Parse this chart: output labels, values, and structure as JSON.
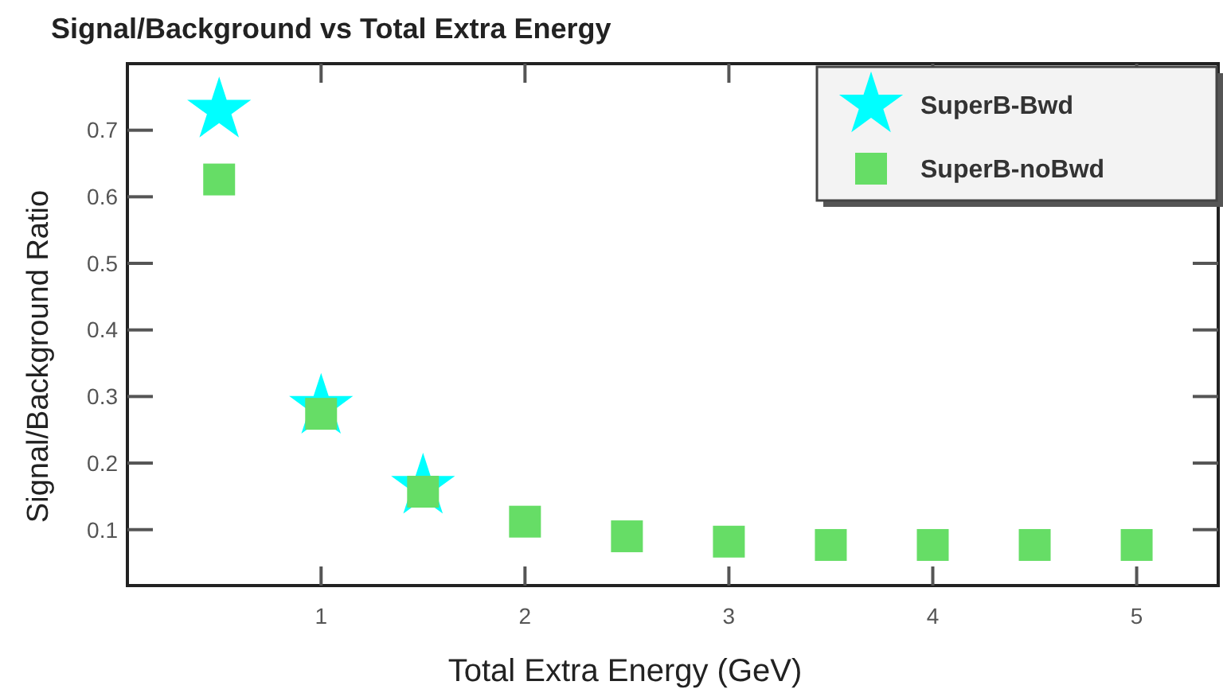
{
  "chart_data": {
    "type": "scatter",
    "title": "Signal/Background vs Total Extra Energy",
    "xlabel": "Total Extra Energy (GeV)",
    "ylabel": "Signal/Background  Ratio",
    "x": [
      0.5,
      1,
      1.5,
      2,
      2.5,
      3,
      3.5,
      4,
      4.5,
      5
    ],
    "series": [
      {
        "name": "SuperB-Bwd",
        "color": "#00ffff",
        "marker": "star",
        "values": [
          0.73,
          0.285,
          0.165,
          null,
          null,
          null,
          null,
          null,
          null,
          null
        ]
      },
      {
        "name": "SuperB-noBwd",
        "color": "#66dd66",
        "marker": "square",
        "values": [
          0.626,
          0.274,
          0.157,
          0.112,
          0.09,
          0.082,
          0.077,
          0.077,
          0.077,
          0.077
        ]
      }
    ],
    "xlim": [
      0.05,
      5.4
    ],
    "ylim": [
      0.016,
      0.8
    ],
    "xticks": [
      1,
      2,
      3,
      4,
      5
    ],
    "yticks": [
      0.1,
      0.2,
      0.3,
      0.4,
      0.5,
      0.6,
      0.7
    ],
    "grid": false,
    "legend": "top right"
  }
}
